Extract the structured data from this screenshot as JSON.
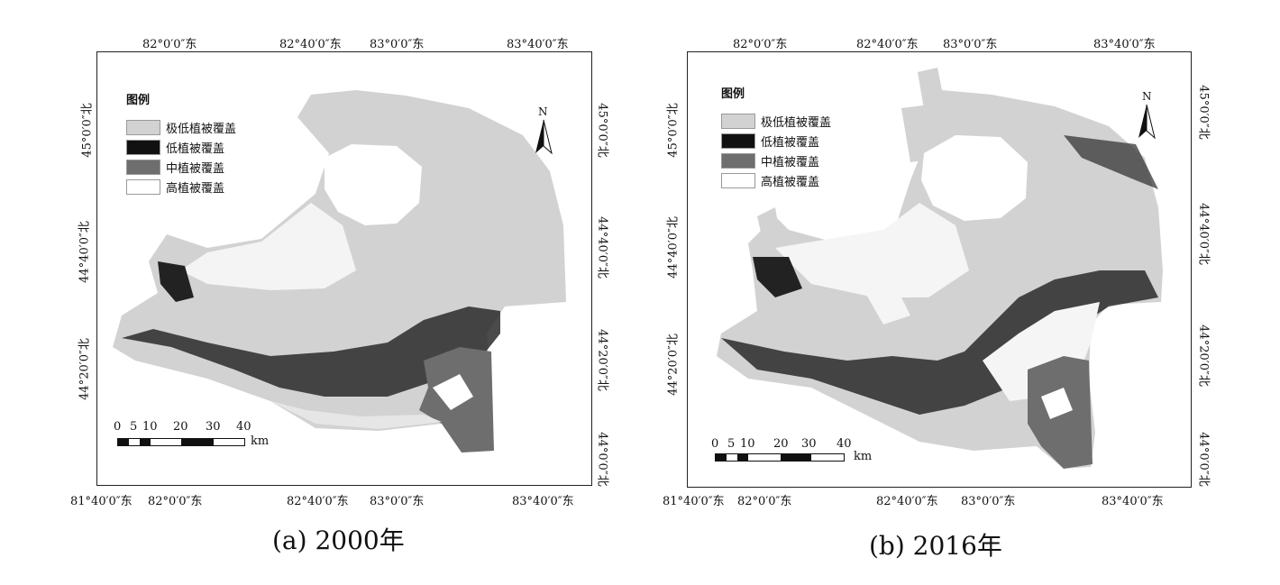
{
  "panels": [
    {
      "caption": "(a) 2000年",
      "top_labels": [
        "82°0′0″东",
        "82°40′0″东",
        "83°0′0″东",
        "83°40′0″东"
      ],
      "bottom_labels": [
        "81°40′0″东",
        "82°0′0″东",
        "82°40′0″东",
        "83°0′0″东",
        "83°40′0″东"
      ],
      "left_labels": [
        "45°0′0″北",
        "44°40′0″北",
        "44°20′0″北"
      ],
      "right_labels": [
        "45°0′0″北",
        "44°40′0″北",
        "44°20′0″北",
        "44°0′0″北"
      ],
      "north": "N",
      "scale_ticks": [
        "0",
        "5",
        "10",
        "20",
        "30",
        "40"
      ],
      "scale_unit": "km"
    },
    {
      "caption": "(b) 2016年",
      "top_labels": [
        "82°0′0″东",
        "82°40′0″东",
        "83°0′0″东",
        "83°40′0″东"
      ],
      "bottom_labels": [
        "81°40′0″东",
        "82°0′0″东",
        "82°40′0″东",
        "83°0′0″东",
        "83°40′0″东"
      ],
      "left_labels": [
        "45°0′0″北",
        "44°40′0″北",
        "44°20′0″北"
      ],
      "right_labels": [
        "45°0′0″北",
        "44°40′0″北",
        "44°20′0″北",
        "44°0′0″北"
      ],
      "north": "N",
      "scale_ticks": [
        "0",
        "5",
        "10",
        "20",
        "30",
        "40"
      ],
      "scale_unit": "km"
    }
  ],
  "legend": {
    "title": "图例",
    "items": [
      {
        "label": "极低植被覆盖",
        "color": "#d2d2d2"
      },
      {
        "label": "低植被覆盖",
        "color": "#111111"
      },
      {
        "label": "中植被覆盖",
        "color": "#6e6e6e"
      },
      {
        "label": "高植被覆盖",
        "color": "#ffffff"
      }
    ]
  }
}
